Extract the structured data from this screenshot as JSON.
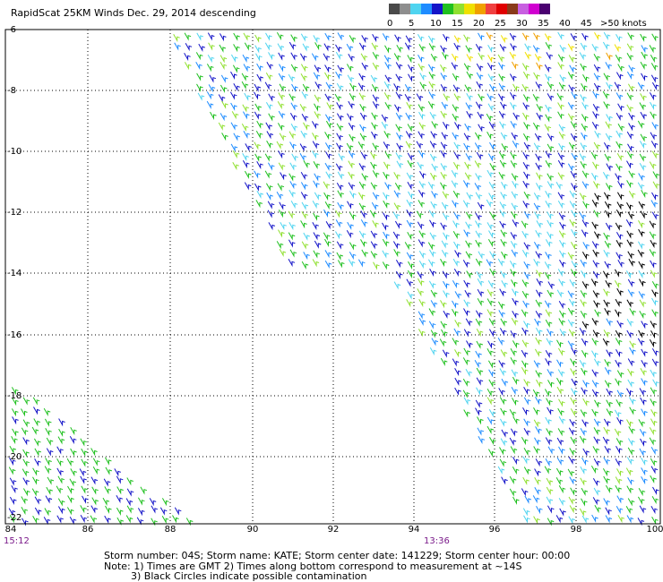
{
  "header": {
    "title": "RapidScat 25KM Winds Dec. 29, 2014 descending"
  },
  "scale": {
    "colors": [
      "#4a4a4a",
      "#8e8e8e",
      "#4fd4f0",
      "#1e8cff",
      "#1414c8",
      "#20c020",
      "#90e030",
      "#f0e000",
      "#f0a000",
      "#f04040",
      "#e00000",
      "#8a3a1a",
      "#c860e0",
      "#d000d0",
      "#4a0070"
    ],
    "labels": [
      "0",
      "5",
      "10",
      "15",
      "20",
      "25",
      "30",
      "35",
      "40",
      "45",
      ">50 knots"
    ]
  },
  "axes": {
    "lat_labels": [
      "-6",
      "-8",
      "-10",
      "-12",
      "-14",
      "-16",
      "-18",
      "-20",
      "-22"
    ],
    "lon_labels": [
      "84",
      "86",
      "88",
      "90",
      "92",
      "94",
      "96",
      "98",
      "100"
    ]
  },
  "times": {
    "left": "15:12",
    "middle": "13:36"
  },
  "footer": {
    "line1": "Storm number: 04S;  Storm name: KATE;  Storm center date: 141229;  Storm center hour: 00:00",
    "line2": "Note: 1) Times are GMT  2) Times along bottom correspond to measurement at ~14S",
    "line3": "3) Black Circles indicate possible contamination"
  }
}
